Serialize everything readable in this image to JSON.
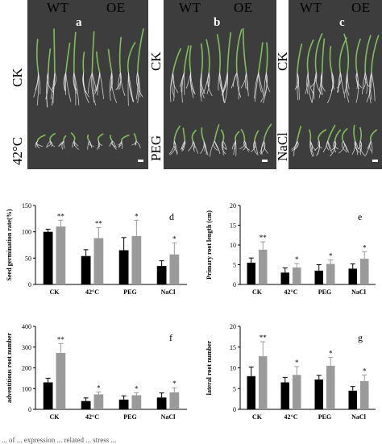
{
  "photos": [
    {
      "id": "a",
      "letter": "a",
      "col_wt": "WT",
      "col_oe": "OE",
      "row_top": "CK",
      "row_bottom": "42°C"
    },
    {
      "id": "b",
      "letter": "b",
      "col_wt": "WT",
      "col_oe": "OE",
      "row_top": "CK",
      "row_bottom": "PEG"
    },
    {
      "id": "c",
      "letter": "c",
      "col_wt": "WT",
      "col_oe": "OE",
      "row_top": "CK",
      "row_bottom": "NaCl"
    }
  ],
  "caption": "... of ... expression ... related ... stress ...",
  "colors": {
    "wt_bar": "#000000",
    "oe_bar": "#9a9a9a",
    "photo_bg": "#3d3d3d",
    "seedling_leaf": "#7fbf5a",
    "root": "#e8e8e8"
  },
  "chart_data": [
    {
      "id": "d",
      "letter": "d",
      "type": "bar",
      "ylabel": "Seed germination rate(%)",
      "categories": [
        "CK",
        "42°C",
        "PEG",
        "NaCl"
      ],
      "ylim": [
        0,
        150
      ],
      "yticks": [
        0,
        50,
        100,
        150
      ],
      "series": [
        {
          "values": [
            100,
            54,
            65,
            35
          ],
          "errors": [
            5,
            12,
            24,
            10
          ]
        },
        {
          "values": [
            110,
            88,
            92,
            57
          ],
          "errors": [
            12,
            20,
            30,
            22
          ]
        }
      ],
      "significance": [
        "**",
        "**",
        "*",
        "*"
      ]
    },
    {
      "id": "e",
      "letter": "e",
      "type": "bar",
      "ylabel": "Primary root length (cm)",
      "categories": [
        "CK",
        "42°C",
        "PEG",
        "NaCl"
      ],
      "ylim": [
        0,
        20
      ],
      "yticks": [
        0,
        5,
        10,
        15,
        20
      ],
      "series": [
        {
          "values": [
            5.5,
            3.0,
            3.5,
            4.0
          ],
          "errors": [
            1.2,
            1.2,
            1.5,
            1.2
          ]
        },
        {
          "values": [
            8.8,
            4.3,
            5.2,
            6.5
          ],
          "errors": [
            2.0,
            1.0,
            1.0,
            1.8
          ]
        }
      ],
      "significance": [
        "**",
        "*",
        "*",
        "*"
      ]
    },
    {
      "id": "f",
      "letter": "f",
      "type": "bar",
      "ylabel": "adventitious root number",
      "categories": [
        "CK",
        "42°C",
        "PEG",
        "NaCl"
      ],
      "ylim": [
        0,
        400
      ],
      "yticks": [
        0,
        100,
        200,
        300,
        400
      ],
      "series": [
        {
          "values": [
            130,
            40,
            47,
            57
          ],
          "errors": [
            20,
            15,
            18,
            22
          ]
        },
        {
          "values": [
            272,
            72,
            68,
            82
          ],
          "errors": [
            45,
            12,
            12,
            22
          ]
        }
      ],
      "significance": [
        "**",
        "*",
        "*",
        "*"
      ]
    },
    {
      "id": "g",
      "letter": "g",
      "type": "bar",
      "ylabel": "lateral root number",
      "categories": [
        "CK",
        "42°C",
        "PEG",
        "NaCl"
      ],
      "ylim": [
        0,
        20
      ],
      "yticks": [
        0,
        5,
        10,
        15,
        20
      ],
      "series": [
        {
          "values": [
            8.0,
            6.5,
            7.2,
            4.5
          ],
          "errors": [
            2.2,
            1.2,
            1.0,
            1.0
          ]
        },
        {
          "values": [
            12.8,
            8.3,
            10.5,
            6.8
          ],
          "errors": [
            3.5,
            2.0,
            2.0,
            1.5
          ]
        }
      ],
      "significance": [
        "**",
        "*",
        "*",
        "*"
      ]
    }
  ]
}
